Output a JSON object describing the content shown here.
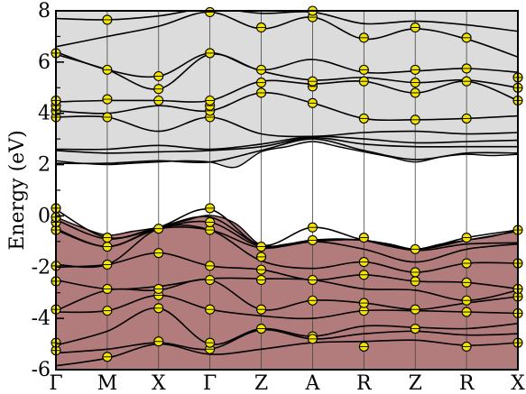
{
  "chart_data": {
    "type": "line",
    "title": "",
    "xlabel": "",
    "ylabel": "Energy (eV)",
    "ylim": [
      -6,
      8
    ],
    "yticks": [
      -6,
      -4,
      -2,
      0,
      2,
      4,
      6,
      8
    ],
    "grid": false,
    "legend": "none",
    "k_path": [
      "Γ",
      "M",
      "X",
      "Γ",
      "Z",
      "A",
      "R",
      "Z",
      "R",
      "X"
    ],
    "k_path_positions": [
      0,
      1,
      2,
      3,
      4,
      5,
      6,
      7,
      8,
      9
    ],
    "xlim": [
      0,
      9
    ],
    "regions": [
      {
        "name": "valence",
        "color": "#b27c7c",
        "lower": -6,
        "upper_edge": [
          [
            0,
            -0.05
          ],
          [
            0.5,
            -0.45
          ],
          [
            1,
            -0.75
          ],
          [
            1.5,
            -0.6
          ],
          [
            2,
            -0.45
          ],
          [
            2.5,
            -0.2
          ],
          [
            3,
            0.02
          ],
          [
            3.5,
            -0.3
          ],
          [
            4,
            -1.15
          ],
          [
            4.5,
            -1.1
          ],
          [
            5,
            -0.95
          ],
          [
            5.5,
            -0.9
          ],
          [
            6,
            -0.95
          ],
          [
            6.5,
            -1.1
          ],
          [
            7,
            -1.3
          ],
          [
            7.5,
            -1.1
          ],
          [
            8,
            -0.95
          ],
          [
            8.5,
            -0.8
          ],
          [
            9,
            -0.55
          ]
        ]
      },
      {
        "name": "conduction",
        "color": "#dcdcdc",
        "upper": 8,
        "lower_edge": [
          [
            0,
            2.15
          ],
          [
            0.5,
            2.05
          ],
          [
            1,
            2.0
          ],
          [
            1.5,
            2.05
          ],
          [
            2,
            2.1
          ],
          [
            2.5,
            2.15
          ],
          [
            3,
            2.1
          ],
          [
            3.5,
            1.9
          ],
          [
            4,
            2.5
          ],
          [
            4.5,
            2.7
          ],
          [
            5,
            2.9
          ],
          [
            5.5,
            2.7
          ],
          [
            6,
            2.5
          ],
          [
            6.5,
            2.3
          ],
          [
            7,
            2.1
          ],
          [
            7.5,
            2.3
          ],
          [
            8,
            2.4
          ],
          [
            8.5,
            2.35
          ],
          [
            9,
            2.4
          ]
        ]
      }
    ],
    "bands": [
      [
        [
          0,
          -5.85
        ],
        [
          1,
          -5.55
        ],
        [
          2,
          -5.0
        ],
        [
          3,
          -5.4
        ],
        [
          4,
          -5.2
        ],
        [
          5,
          -4.95
        ],
        [
          6,
          -4.9
        ],
        [
          7,
          -4.85
        ],
        [
          8,
          -5.05
        ],
        [
          9,
          -4.95
        ]
      ],
      [
        [
          0,
          -5.35
        ],
        [
          1,
          -5.2
        ],
        [
          2,
          -4.95
        ],
        [
          3,
          -5.2
        ],
        [
          4,
          -4.45
        ],
        [
          5,
          -4.8
        ],
        [
          6,
          -4.6
        ],
        [
          7,
          -4.5
        ],
        [
          8,
          -4.65
        ],
        [
          9,
          -4.6
        ]
      ],
      [
        [
          0,
          -5.05
        ],
        [
          1,
          -4.5
        ],
        [
          2,
          -3.6
        ],
        [
          3,
          -5.0
        ],
        [
          4,
          -4.4
        ],
        [
          5,
          -4.7
        ],
        [
          6,
          -4.3
        ],
        [
          7,
          -4.35
        ],
        [
          8,
          -4.4
        ],
        [
          9,
          -4.2
        ]
      ],
      [
        [
          0,
          -3.75
        ],
        [
          1,
          -3.7
        ],
        [
          2,
          -3.1
        ],
        [
          3,
          -3.65
        ],
        [
          4,
          -3.9
        ],
        [
          5,
          -4.0
        ],
        [
          6,
          -3.7
        ],
        [
          7,
          -3.7
        ],
        [
          8,
          -3.75
        ],
        [
          9,
          -3.8
        ]
      ],
      [
        [
          0,
          -3.7
        ],
        [
          1,
          -2.9
        ],
        [
          2,
          -2.9
        ],
        [
          3,
          -2.5
        ],
        [
          4,
          -3.65
        ],
        [
          5,
          -3.3
        ],
        [
          6,
          -3.4
        ],
        [
          7,
          -3.65
        ],
        [
          8,
          -3.4
        ],
        [
          9,
          -3.15
        ]
      ],
      [
        [
          0,
          -2.5
        ],
        [
          1,
          -2.85
        ],
        [
          2,
          -2.75
        ],
        [
          3,
          -2.45
        ],
        [
          4,
          -2.45
        ],
        [
          5,
          -2.5
        ],
        [
          6,
          -2.85
        ],
        [
          7,
          -2.9
        ],
        [
          8,
          -3.3
        ],
        [
          9,
          -2.9
        ]
      ],
      [
        [
          0,
          -2.0
        ],
        [
          1,
          -1.9
        ],
        [
          2,
          -1.45
        ],
        [
          3,
          -1.95
        ],
        [
          4,
          -2.1
        ],
        [
          5,
          -2.5
        ],
        [
          6,
          -2.3
        ],
        [
          7,
          -2.55
        ],
        [
          8,
          -2.6
        ],
        [
          9,
          -2.85
        ]
      ],
      [
        [
          0,
          -1.9
        ],
        [
          1,
          -1.9
        ],
        [
          2,
          -0.5
        ],
        [
          3,
          -0.55
        ],
        [
          4,
          -1.75
        ],
        [
          5,
          -2.05
        ],
        [
          6,
          -1.8
        ],
        [
          7,
          -2.2
        ],
        [
          8,
          -1.85
        ],
        [
          9,
          -1.85
        ]
      ],
      [
        [
          0,
          -0.55
        ],
        [
          1,
          -1.2
        ],
        [
          2,
          -0.5
        ],
        [
          3,
          -0.55
        ],
        [
          4,
          -1.25
        ],
        [
          5,
          -1.0
        ],
        [
          6,
          -1.3
        ],
        [
          7,
          -1.8
        ],
        [
          8,
          -1.3
        ],
        [
          9,
          -1.1
        ]
      ],
      [
        [
          0,
          -0.5
        ],
        [
          1,
          -1.2
        ],
        [
          2,
          -0.5
        ],
        [
          3,
          -0.25
        ],
        [
          4,
          -1.2
        ],
        [
          5,
          -1.0
        ],
        [
          6,
          -0.95
        ],
        [
          7,
          -1.35
        ],
        [
          8,
          -1.1
        ],
        [
          9,
          -1.05
        ]
      ],
      [
        [
          0,
          -0.15
        ],
        [
          1,
          -0.9
        ],
        [
          2,
          -0.45
        ],
        [
          3,
          -0.05
        ],
        [
          4,
          -1.15
        ],
        [
          5,
          -0.95
        ],
        [
          6,
          -0.95
        ],
        [
          7,
          -1.3
        ],
        [
          8,
          -0.95
        ],
        [
          9,
          -0.6
        ]
      ],
      [
        [
          0,
          0.25
        ],
        [
          1,
          -0.85
        ],
        [
          2,
          -0.45
        ],
        [
          3,
          0.25
        ],
        [
          4,
          -1.15
        ],
        [
          5,
          -0.45
        ],
        [
          6,
          -0.95
        ],
        [
          7,
          -1.3
        ],
        [
          8,
          -0.85
        ],
        [
          9,
          -0.55
        ]
      ],
      [
        [
          0,
          2.05
        ],
        [
          1,
          2.05
        ],
        [
          2,
          2.15
        ],
        [
          3,
          2.1
        ],
        [
          4,
          2.55
        ],
        [
          5,
          3.0
        ],
        [
          6,
          2.55
        ],
        [
          7,
          2.2
        ],
        [
          8,
          2.45
        ],
        [
          9,
          2.45
        ]
      ],
      [
        [
          0,
          2.55
        ],
        [
          1,
          2.45
        ],
        [
          2,
          2.5
        ],
        [
          3,
          2.55
        ],
        [
          4,
          2.7
        ],
        [
          5,
          3.05
        ],
        [
          6,
          2.8
        ],
        [
          7,
          2.7
        ],
        [
          8,
          2.7
        ],
        [
          9,
          2.7
        ]
      ],
      [
        [
          0,
          2.6
        ],
        [
          1,
          2.6
        ],
        [
          2,
          2.75
        ],
        [
          3,
          2.6
        ],
        [
          4,
          2.8
        ],
        [
          5,
          3.1
        ],
        [
          6,
          3.0
        ],
        [
          7,
          2.85
        ],
        [
          8,
          2.9
        ],
        [
          9,
          2.95
        ]
      ],
      [
        [
          0,
          3.85
        ],
        [
          1,
          3.85
        ],
        [
          2,
          3.3
        ],
        [
          3,
          3.85
        ],
        [
          4,
          3.2
        ],
        [
          5,
          3.1
        ],
        [
          6,
          3.25
        ],
        [
          7,
          3.3
        ],
        [
          8,
          3.2
        ],
        [
          9,
          3.25
        ]
      ],
      [
        [
          0,
          4.1
        ],
        [
          1,
          4.0
        ],
        [
          2,
          4.3
        ],
        [
          3,
          4.1
        ],
        [
          4,
          4.8
        ],
        [
          5,
          4.4
        ],
        [
          6,
          3.8
        ],
        [
          7,
          3.75
        ],
        [
          8,
          3.8
        ],
        [
          9,
          3.9
        ]
      ],
      [
        [
          0,
          4.45
        ],
        [
          1,
          4.5
        ],
        [
          2,
          4.5
        ],
        [
          3,
          4.5
        ],
        [
          4,
          5.25
        ],
        [
          5,
          5.15
        ],
        [
          6,
          5.25
        ],
        [
          7,
          4.8
        ],
        [
          8,
          5.25
        ],
        [
          9,
          4.5
        ]
      ],
      [
        [
          0,
          6.3
        ],
        [
          1,
          5.7
        ],
        [
          2,
          4.95
        ],
        [
          3,
          6.3
        ],
        [
          4,
          5.65
        ],
        [
          5,
          5.3
        ],
        [
          6,
          5.4
        ],
        [
          7,
          5.2
        ],
        [
          8,
          5.3
        ],
        [
          9,
          5.0
        ]
      ],
      [
        [
          0,
          6.4
        ],
        [
          1,
          5.7
        ],
        [
          2,
          5.45
        ],
        [
          3,
          6.35
        ],
        [
          4,
          5.7
        ],
        [
          5,
          6.1
        ],
        [
          6,
          5.6
        ],
        [
          7,
          5.65
        ],
        [
          8,
          5.75
        ],
        [
          9,
          5.6
        ]
      ],
      [
        [
          0,
          6.6
        ],
        [
          1,
          7.0
        ],
        [
          2,
          7.4
        ],
        [
          3,
          7.95
        ],
        [
          4,
          7.3
        ],
        [
          5,
          7.75
        ],
        [
          6,
          6.9
        ],
        [
          7,
          7.3
        ],
        [
          8,
          6.9
        ],
        [
          9,
          6.2
        ]
      ],
      [
        [
          0,
          7.7
        ],
        [
          1,
          7.65
        ],
        [
          2,
          7.8
        ],
        [
          3,
          8.1
        ],
        [
          4,
          7.9
        ],
        [
          5,
          7.95
        ],
        [
          6,
          7.5
        ],
        [
          7,
          7.6
        ],
        [
          8,
          7.45
        ],
        [
          9,
          7.2
        ]
      ]
    ],
    "points": [
      [
        0,
        -5.25
      ],
      [
        0,
        -4.95
      ],
      [
        0,
        -3.65
      ],
      [
        0,
        -2.55
      ],
      [
        0,
        -1.95
      ],
      [
        0,
        -0.55
      ],
      [
        0,
        -0.25
      ],
      [
        0,
        -0.05
      ],
      [
        0,
        0.3
      ],
      [
        0,
        3.85
      ],
      [
        0,
        4.1
      ],
      [
        0,
        4.3
      ],
      [
        0,
        4.5
      ],
      [
        0,
        6.35
      ],
      [
        1,
        -5.5
      ],
      [
        1,
        -3.7
      ],
      [
        1,
        -2.85
      ],
      [
        1,
        -1.9
      ],
      [
        1,
        -1.2
      ],
      [
        1,
        -0.85
      ],
      [
        1,
        3.85
      ],
      [
        1,
        4.55
      ],
      [
        1,
        5.7
      ],
      [
        1,
        7.65
      ],
      [
        2,
        -4.9
      ],
      [
        2,
        -3.6
      ],
      [
        2,
        -3.1
      ],
      [
        2,
        -2.85
      ],
      [
        2,
        -1.45
      ],
      [
        2,
        -0.5
      ],
      [
        2,
        4.5
      ],
      [
        2,
        4.95
      ],
      [
        2,
        5.45
      ],
      [
        3,
        -5.2
      ],
      [
        3,
        -4.95
      ],
      [
        3,
        -3.65
      ],
      [
        3,
        -2.5
      ],
      [
        3,
        -1.95
      ],
      [
        3,
        -0.55
      ],
      [
        3,
        -0.25
      ],
      [
        3,
        0.3
      ],
      [
        3,
        3.85
      ],
      [
        3,
        4.1
      ],
      [
        3,
        4.3
      ],
      [
        3,
        4.5
      ],
      [
        3,
        6.35
      ],
      [
        3,
        7.95
      ],
      [
        4,
        -4.4
      ],
      [
        4,
        -3.65
      ],
      [
        4,
        -2.5
      ],
      [
        4,
        -2.1
      ],
      [
        4,
        -1.6
      ],
      [
        4,
        -1.2
      ],
      [
        4,
        4.8
      ],
      [
        4,
        5.2
      ],
      [
        4,
        5.7
      ],
      [
        4,
        7.35
      ],
      [
        5,
        -4.7
      ],
      [
        5,
        -4.8
      ],
      [
        5,
        -3.3
      ],
      [
        5,
        -2.5
      ],
      [
        5,
        -0.95
      ],
      [
        5,
        -0.45
      ],
      [
        5,
        4.4
      ],
      [
        5,
        5.05
      ],
      [
        5,
        5.25
      ],
      [
        5,
        7.75
      ],
      [
        5,
        8.0
      ],
      [
        6,
        -5.1
      ],
      [
        6,
        -3.7
      ],
      [
        6,
        -3.4
      ],
      [
        6,
        -2.3
      ],
      [
        6,
        -1.8
      ],
      [
        6,
        -0.85
      ],
      [
        6,
        3.8
      ],
      [
        6,
        5.25
      ],
      [
        6,
        5.7
      ],
      [
        6,
        6.95
      ],
      [
        7,
        -4.4
      ],
      [
        7,
        -3.65
      ],
      [
        7,
        -2.55
      ],
      [
        7,
        -2.2
      ],
      [
        7,
        -1.3
      ],
      [
        7,
        3.75
      ],
      [
        7,
        4.8
      ],
      [
        7,
        5.2
      ],
      [
        7,
        5.7
      ],
      [
        7,
        7.35
      ],
      [
        8,
        -5.1
      ],
      [
        8,
        -3.75
      ],
      [
        8,
        -3.3
      ],
      [
        8,
        -2.6
      ],
      [
        8,
        -1.85
      ],
      [
        8,
        -0.85
      ],
      [
        8,
        3.8
      ],
      [
        8,
        5.25
      ],
      [
        8,
        5.75
      ],
      [
        8,
        6.95
      ],
      [
        9,
        -4.95
      ],
      [
        9,
        -3.8
      ],
      [
        9,
        -3.15
      ],
      [
        9,
        -2.85
      ],
      [
        9,
        -1.85
      ],
      [
        9,
        -0.55
      ],
      [
        9,
        4.5
      ],
      [
        9,
        5.0
      ],
      [
        9,
        5.4
      ]
    ],
    "point_color": "#f2e400",
    "line_color": "#000000"
  }
}
